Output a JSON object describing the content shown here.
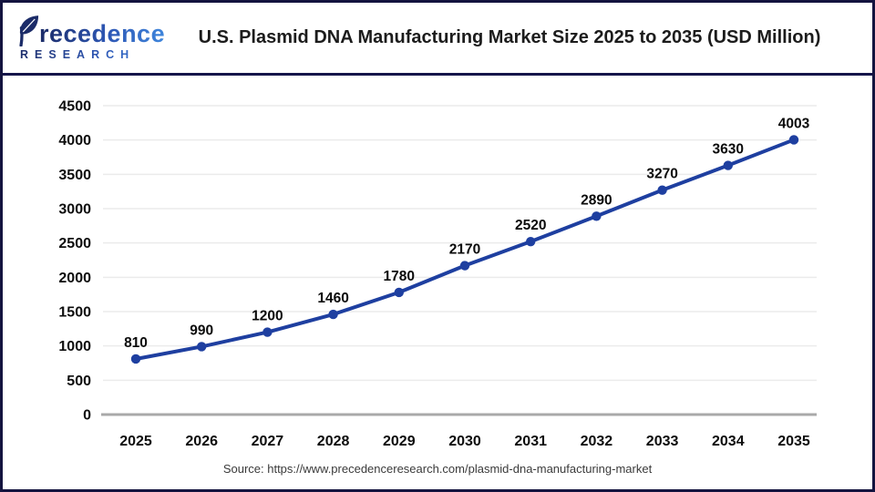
{
  "header": {
    "logo": {
      "brand": "Precedence",
      "subtitle": "RESEARCH"
    },
    "title": "U.S. Plasmid DNA Manufacturing Market Size 2025 to 2035 (USD Million)"
  },
  "chart_data": {
    "type": "line",
    "title": "U.S. Plasmid DNA Manufacturing Market Size 2025 to 2035 (USD Million)",
    "categories": [
      "2025",
      "2026",
      "2027",
      "2028",
      "2029",
      "2030",
      "2031",
      "2032",
      "2033",
      "2034",
      "2035"
    ],
    "values": [
      810,
      990,
      1200,
      1460,
      1780,
      2170,
      2520,
      2890,
      3270,
      3630,
      4003
    ],
    "unit": "USD Million",
    "xlabel": "",
    "ylabel": "",
    "ylim": [
      0,
      4500
    ],
    "ytick_step": 500,
    "grid": true,
    "legend": "none",
    "marker": "circle",
    "data_labels_shown": true
  },
  "footer": {
    "source": "Source: https://www.precedenceresearch.com/plasmid-dna-manufacturing-market"
  },
  "colors": {
    "line": "#1e3fa0",
    "marker": "#1e3fa0",
    "grid": "#ebebeb",
    "axis": "#a9a9a9",
    "border": "#14143f",
    "title_text": "#1c1c1c",
    "source_text": "#3a3a3a",
    "logo_navy": "#1b2b68",
    "logo_blue": "#3f86dc"
  }
}
